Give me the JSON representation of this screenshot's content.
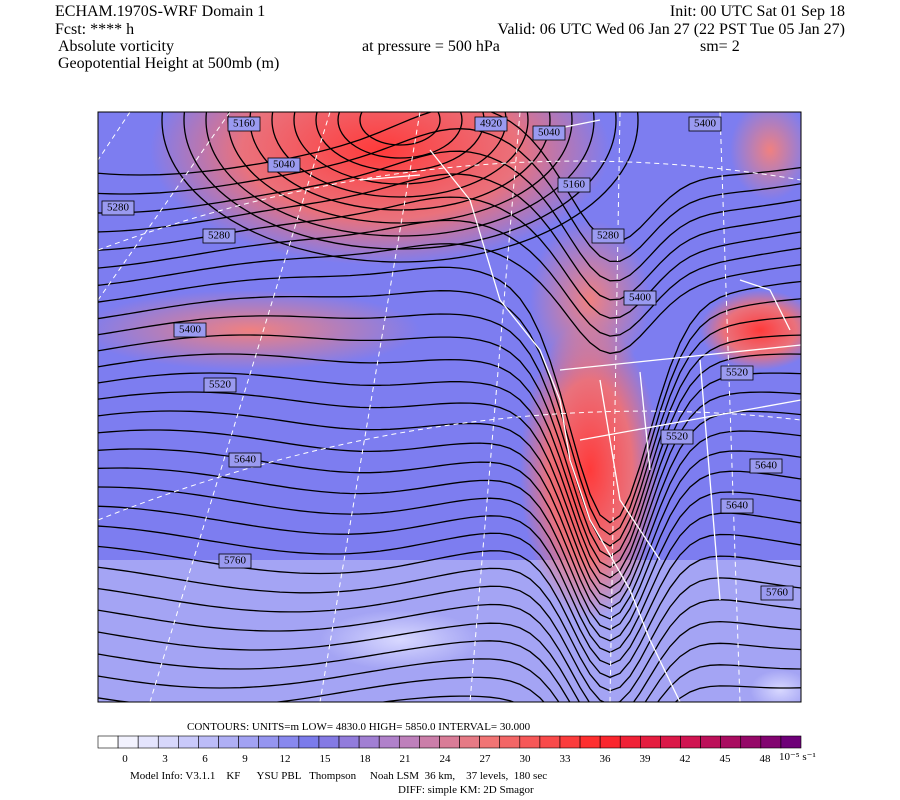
{
  "header": {
    "title": "ECHAM.1970S-WRF Domain 1",
    "init": "Init: 00 UTC Sat 01 Sep 18",
    "fcst": "Fcst: **** h",
    "valid": "Valid: 06 UTC Wed 06 Jan 27 (22 PST Tue 05 Jan 27)",
    "field1": "Absolute vorticity",
    "pressure": "at pressure =  500 hPa",
    "sm": "sm= 2",
    "field2": "Geopotential Height at 500mb (m)"
  },
  "contour_labels": [
    "5160",
    "4920",
    "5040",
    "5400",
    "5040",
    "5280",
    "5160",
    "5280",
    "5280",
    "5400",
    "5400",
    "5520",
    "5520",
    "5520",
    "5640",
    "5640",
    "5640",
    "5760",
    "5760"
  ],
  "contours_info": "CONTOURS:  UNITS=m  LOW=   4830.0      HIGH=  5850.0      INTERVAL=   30.000",
  "colorbar": {
    "ticks": [
      "0",
      "3",
      "6",
      "9",
      "12",
      "15",
      "18",
      "21",
      "24",
      "27",
      "30",
      "33",
      "36",
      "39",
      "42",
      "45",
      "48"
    ],
    "unit": "10⁻⁵ s⁻¹"
  },
  "footer": {
    "model_info": "Model Info: V3.1.1    KF      YSU PBL   Thompson     Noah LSM  36 km,    37 levels,  180 sec",
    "diff": "DIFF: simple KM: 2D Smagor"
  }
}
